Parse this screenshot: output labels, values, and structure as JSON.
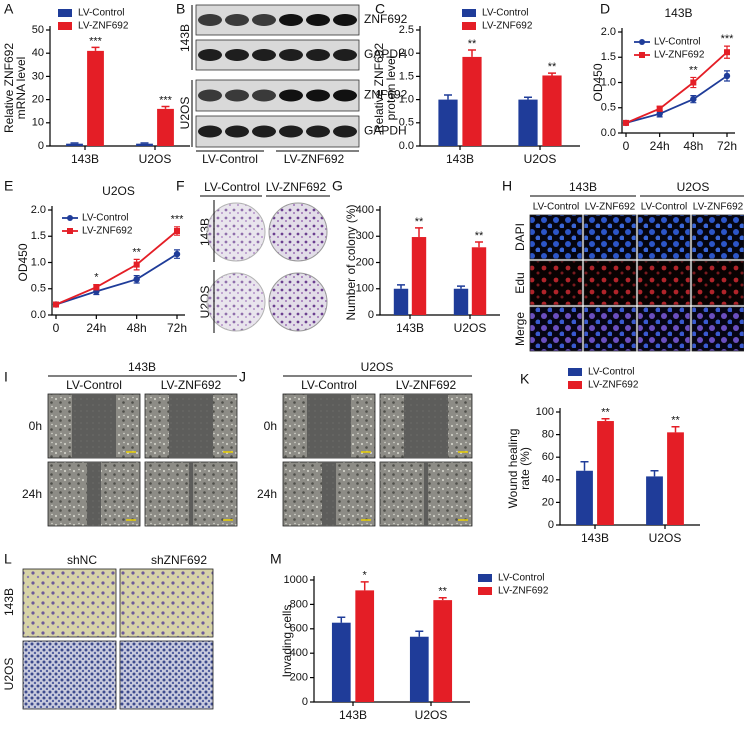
{
  "chart_data": [
    {
      "panel": "A",
      "type": "bar",
      "ylabel": [
        "Relative ZNF692",
        "mRNA level"
      ],
      "categories": [
        "143B",
        "U2OS"
      ],
      "series": [
        {
          "name": "LV-Control",
          "color": "#1f3c99",
          "values": [
            1,
            1
          ],
          "errors": [
            0.3,
            0.3
          ]
        },
        {
          "name": "LV-ZNF692",
          "color": "#e41e26",
          "values": [
            41,
            16
          ],
          "errors": [
            1.5,
            1
          ],
          "annotations": [
            "***",
            "***"
          ]
        }
      ],
      "ylim": [
        0,
        50
      ],
      "yticks": [
        0,
        10,
        20,
        30,
        40,
        50
      ]
    },
    {
      "panel": "C",
      "type": "bar",
      "ylabel": [
        "Relative ZNF692",
        "protein level"
      ],
      "categories": [
        "143B",
        "U2OS"
      ],
      "series": [
        {
          "name": "LV-Control",
          "color": "#1f3c99",
          "values": [
            1,
            1
          ],
          "errors": [
            0.1,
            0.05
          ]
        },
        {
          "name": "LV-ZNF692",
          "color": "#e41e26",
          "values": [
            1.92,
            1.52
          ],
          "errors": [
            0.15,
            0.05
          ],
          "annotations": [
            "**",
            "**"
          ]
        }
      ],
      "ylim": [
        0,
        2.5
      ],
      "yticks": [
        {
          "value": 0,
          "label": "0.0"
        },
        0.5,
        {
          "value": 1,
          "label": "1.0"
        },
        1.5,
        {
          "value": 2,
          "label": "2.0"
        },
        2.5
      ]
    },
    {
      "panel": "D",
      "type": "line",
      "title": "143B",
      "ylabel": [
        "OD450"
      ],
      "categories": [
        "0",
        "24h",
        "48h",
        "72h"
      ],
      "series": [
        {
          "name": "LV-Control",
          "color": "#1f3c99",
          "values": [
            0.2,
            0.38,
            0.67,
            1.13
          ],
          "errors": [
            0.02,
            0.06,
            0.07,
            0.1
          ]
        },
        {
          "name": "LV-ZNF692",
          "color": "#e41e26",
          "values": [
            0.2,
            0.48,
            1.0,
            1.6
          ],
          "errors": [
            0.02,
            0.05,
            0.1,
            0.12
          ],
          "annotations": [
            null,
            null,
            "**",
            "***"
          ]
        }
      ],
      "ylim": [
        0,
        2
      ],
      "yticks": [
        {
          "value": 0,
          "label": "0.0"
        },
        0.5,
        {
          "value": 1,
          "label": "1.0"
        },
        1.5,
        {
          "value": 2,
          "label": "2.0"
        }
      ]
    },
    {
      "panel": "E",
      "type": "line",
      "title": "U2OS",
      "ylabel": [
        "OD450"
      ],
      "categories": [
        "0",
        "24h",
        "48h",
        "72h"
      ],
      "series": [
        {
          "name": "LV-Control",
          "color": "#1f3c99",
          "values": [
            0.2,
            0.45,
            0.68,
            1.16
          ],
          "errors": [
            0.02,
            0.06,
            0.07,
            0.08
          ]
        },
        {
          "name": "LV-ZNF692",
          "color": "#e41e26",
          "values": [
            0.2,
            0.53,
            0.96,
            1.6
          ],
          "errors": [
            0.02,
            0.05,
            0.1,
            0.08
          ],
          "annotations": [
            null,
            "*",
            "**",
            "***"
          ]
        }
      ],
      "ylim": [
        0,
        2
      ],
      "yticks": [
        {
          "value": 0,
          "label": "0.0"
        },
        0.5,
        {
          "value": 1,
          "label": "1.0"
        },
        1.5,
        {
          "value": 2,
          "label": "2.0"
        }
      ]
    },
    {
      "panel": "G",
      "type": "bar",
      "ylabel": [
        "Number of colony (%)"
      ],
      "categories": [
        "143B",
        "U2OS"
      ],
      "series": [
        {
          "name": "LV-Control",
          "color": "#1f3c99",
          "values": [
            100,
            100
          ],
          "errors": [
            15,
            10
          ]
        },
        {
          "name": "LV-ZNF692",
          "color": "#e41e26",
          "values": [
            297,
            258
          ],
          "errors": [
            35,
            20
          ],
          "annotations": [
            "**",
            "**"
          ]
        }
      ],
      "legend": false,
      "ylim": [
        0,
        400
      ],
      "yticks": [
        0,
        100,
        200,
        300,
        400
      ]
    },
    {
      "panel": "K",
      "type": "bar",
      "ylabel": [
        "Wound healing",
        "rate (%)"
      ],
      "categories": [
        "143B",
        "U2OS"
      ],
      "series": [
        {
          "name": "LV-Control",
          "color": "#1f3c99",
          "values": [
            48,
            43
          ],
          "errors": [
            8,
            5
          ]
        },
        {
          "name": "LV-ZNF692",
          "color": "#e41e26",
          "values": [
            92,
            82
          ],
          "errors": [
            2,
            5
          ],
          "annotations": [
            "**",
            "**"
          ]
        }
      ],
      "ylim": [
        0,
        100
      ],
      "yticks": [
        0,
        20,
        40,
        60,
        80,
        100
      ]
    },
    {
      "panel": "M",
      "type": "bar",
      "ylabel": [
        "Invading cells"
      ],
      "categories": [
        "143B",
        "U2OS"
      ],
      "series": [
        {
          "name": "LV-Control",
          "color": "#1f3c99",
          "values": [
            650,
            535
          ],
          "errors": [
            45,
            45
          ]
        },
        {
          "name": "LV-ZNF692",
          "color": "#e41e26",
          "values": [
            915,
            835
          ],
          "errors": [
            70,
            20
          ],
          "annotations": [
            "*",
            "**"
          ]
        }
      ],
      "ylim": [
        0,
        1000
      ],
      "yticks": [
        0,
        200,
        400,
        600,
        800,
        1000
      ]
    }
  ],
  "figure": {
    "B": {
      "panel": "B",
      "row_labels": [
        "143B",
        "U2OS"
      ],
      "band_labels": [
        "ZNF692",
        "GAPDH",
        "ZNF692",
        "GAPDH"
      ],
      "group_labels": [
        "LV-Control",
        "LV-ZNF692"
      ]
    },
    "F": {
      "panel": "F",
      "column_labels": [
        "LV-Control",
        "LV-ZNF692"
      ],
      "row_labels": [
        "143B",
        "U2OS"
      ]
    },
    "H": {
      "panel": "H",
      "group_labels": [
        "143B",
        "U2OS"
      ],
      "column_labels": [
        "LV-Control",
        "LV-ZNF692",
        "LV-Control",
        "LV-ZNF692"
      ],
      "row_labels": [
        "DAPI",
        "Edu",
        "Merge"
      ]
    },
    "I": {
      "panel": "I",
      "title": "143B",
      "column_labels": [
        "LV-Control",
        "LV-ZNF692"
      ],
      "row_labels": [
        "0h",
        "24h"
      ]
    },
    "J": {
      "panel": "J",
      "title": "U2OS",
      "column_labels": [
        "LV-Control",
        "LV-ZNF692"
      ],
      "row_labels": [
        "0h",
        "24h"
      ]
    },
    "L": {
      "panel": "L",
      "column_labels": [
        "shNC",
        "shZNF692"
      ],
      "row_labels": [
        "143B",
        "U2OS"
      ]
    }
  }
}
